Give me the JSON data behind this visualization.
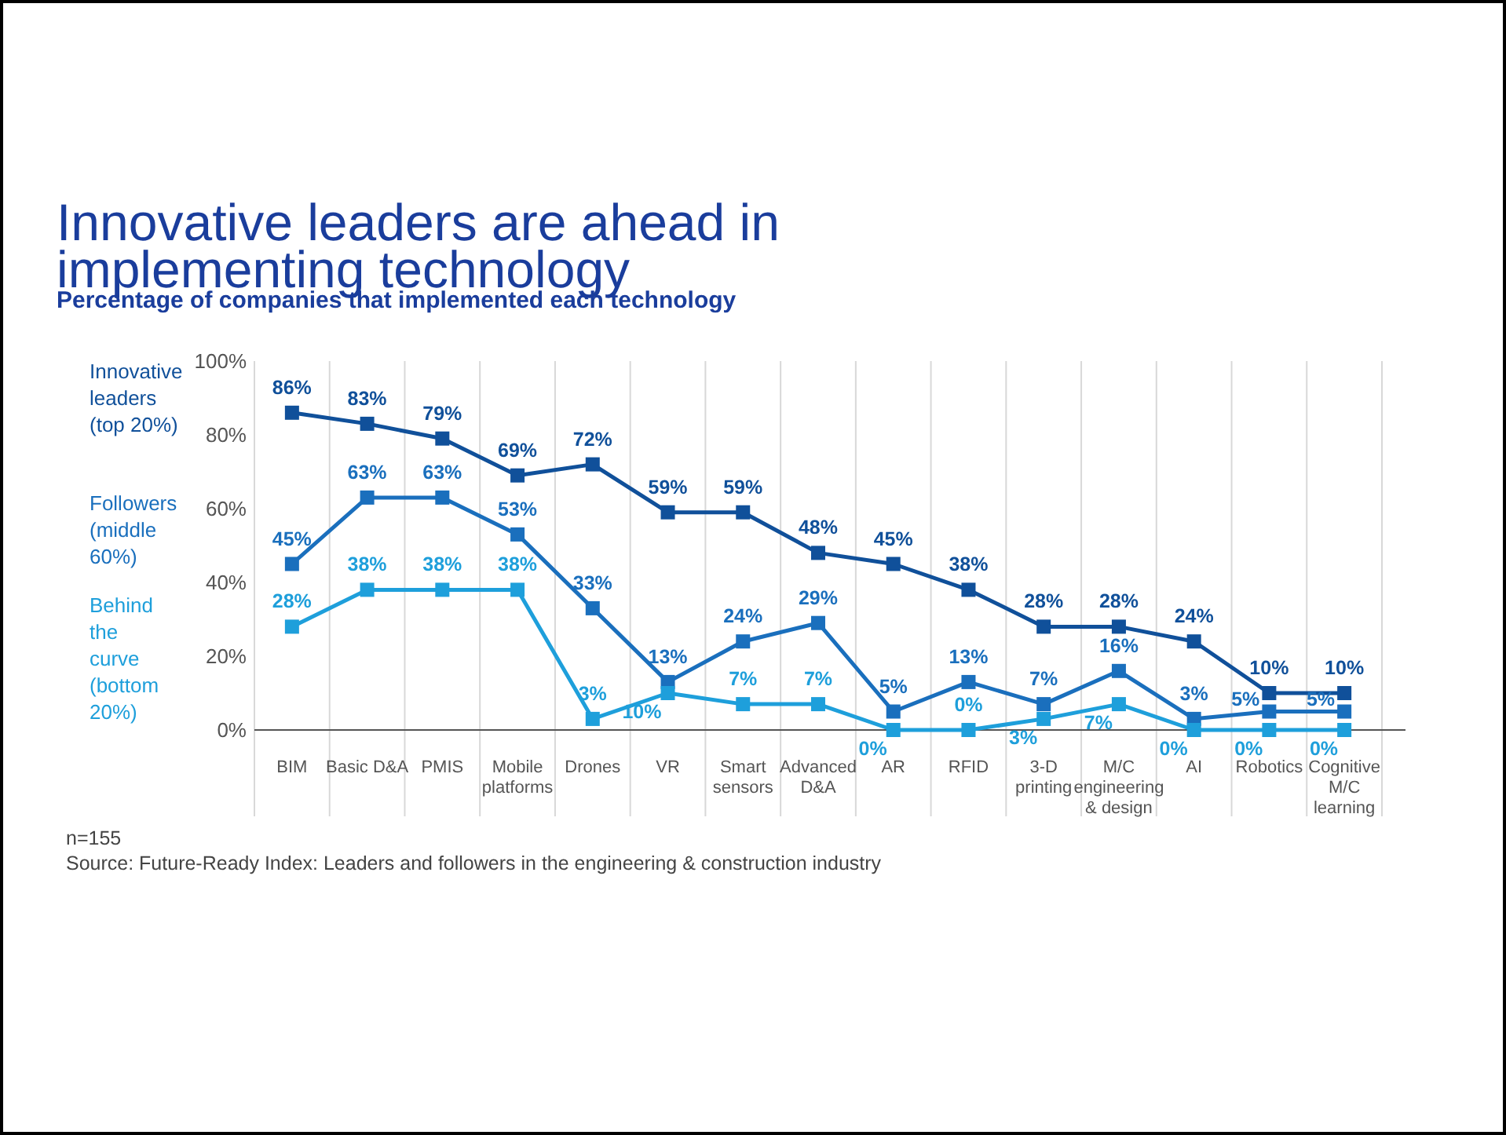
{
  "chart_data": {
    "type": "line",
    "title": "Innovative leaders are ahead in implementing technology",
    "subtitle": "Percentage of companies that implemented each technology",
    "categories": [
      "BIM",
      "Basic D&A",
      "PMIS",
      "Mobile platforms",
      "Drones",
      "VR",
      "Smart sensors",
      "Advanced D&A",
      "AR",
      "RFID",
      "3-D printing",
      "M/C engineering & design",
      "AI",
      "Robotics",
      "Cognitive M/C learning"
    ],
    "series": [
      {
        "name": "Innovative leaders (top 20%)",
        "color": "#10509a",
        "values": [
          86,
          83,
          79,
          69,
          72,
          59,
          59,
          48,
          45,
          38,
          28,
          28,
          24,
          10,
          10
        ],
        "value_labels": [
          "86%",
          "83%",
          "79%",
          "69%",
          "72%",
          "59%",
          "59%",
          "48%",
          "45%",
          "38%",
          "28%",
          "28%",
          "24%",
          "10%",
          "10%"
        ]
      },
      {
        "name": "Followers (middle 60%)",
        "color": "#1a6fbd",
        "values": [
          45,
          63,
          63,
          53,
          33,
          13,
          24,
          29,
          5,
          13,
          7,
          16,
          3,
          5,
          5
        ],
        "value_labels": [
          "45%",
          "63%",
          "63%",
          "53%",
          "33%",
          "13%",
          "24%",
          "29%",
          "5%",
          "13%",
          "7%",
          "16%",
          "3%",
          "5%",
          "5%"
        ]
      },
      {
        "name": "Behind the curve (bottom 20%)",
        "color": "#1e9fdb",
        "values": [
          28,
          38,
          38,
          38,
          3,
          10,
          7,
          7,
          0,
          0,
          3,
          7,
          0,
          0,
          0
        ],
        "value_labels": [
          "28%",
          "38%",
          "38%",
          "38%",
          "3%",
          "10%",
          "7%",
          "7%",
          "0%",
          "0%",
          "3%",
          "7%",
          "0%",
          "0%",
          "0%"
        ]
      }
    ],
    "ylim": [
      0,
      100
    ],
    "yticks": [
      {
        "value": 0,
        "label": "0%"
      },
      {
        "value": 20,
        "label": "20%"
      },
      {
        "value": 40,
        "label": "40%"
      },
      {
        "value": 60,
        "label": "60%"
      },
      {
        "value": 80,
        "label": "80%"
      },
      {
        "value": 100,
        "label": "100%"
      }
    ],
    "grid": "x",
    "marker": "square",
    "line_style": "solid",
    "legend": "left",
    "annotations": [
      "n=155",
      "Source: Future-Ready Index: Leaders and followers in the engineering & construction industry"
    ]
  }
}
